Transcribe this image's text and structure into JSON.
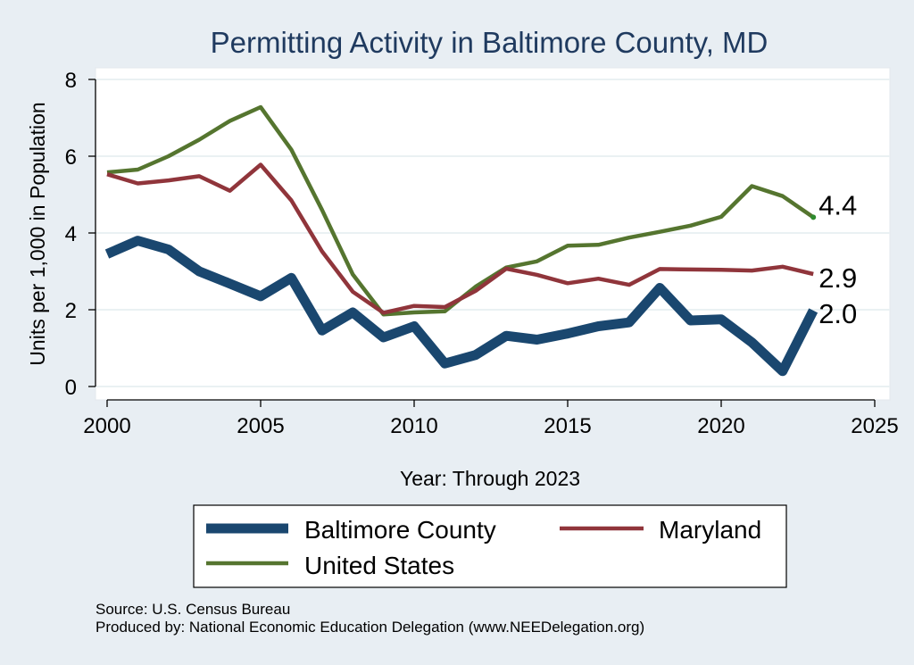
{
  "colors": {
    "baltimore": "#1a476f",
    "maryland": "#90353b",
    "united_states": "#55752f",
    "title": "#1f3a5f",
    "plot_bg": "#ffffff",
    "outer_bg": "#e8eef3",
    "grid": "#eaf1f3"
  },
  "chart_data": {
    "type": "line",
    "title": "Permitting Activity in Baltimore County, MD",
    "xlabel": "Year: Through 2023",
    "ylabel": "Units per 1,000 in Population",
    "xlim": [
      2000,
      2025
    ],
    "ylim": [
      0,
      8
    ],
    "x_ticks": [
      2000,
      2005,
      2010,
      2015,
      2020,
      2025
    ],
    "y_ticks": [
      0,
      2,
      4,
      6,
      8
    ],
    "grid": true,
    "legend_position": "bottom",
    "x": [
      2000,
      2001,
      2002,
      2003,
      2004,
      2005,
      2006,
      2007,
      2008,
      2009,
      2010,
      2011,
      2012,
      2013,
      2014,
      2015,
      2016,
      2017,
      2018,
      2019,
      2020,
      2021,
      2022,
      2023
    ],
    "series": [
      {
        "name": "Baltimore County",
        "color_key": "baltimore",
        "values": [
          3.45,
          3.8,
          3.57,
          3.0,
          2.68,
          2.35,
          2.83,
          1.46,
          1.93,
          1.28,
          1.57,
          0.6,
          0.82,
          1.32,
          1.22,
          1.38,
          1.57,
          1.67,
          2.57,
          1.72,
          1.75,
          1.15,
          0.4,
          1.98
        ],
        "end_label": "2.0"
      },
      {
        "name": "Maryland",
        "color_key": "maryland",
        "values": [
          5.53,
          5.29,
          5.37,
          5.48,
          5.1,
          5.78,
          4.85,
          3.52,
          2.47,
          1.92,
          2.1,
          2.07,
          2.49,
          3.07,
          2.91,
          2.69,
          2.81,
          2.65,
          3.06,
          3.05,
          3.04,
          3.02,
          3.12,
          2.93
        ],
        "end_label": "2.9"
      },
      {
        "name": "United States",
        "color_key": "united_states",
        "values": [
          5.58,
          5.65,
          6.0,
          6.43,
          6.92,
          7.28,
          6.17,
          4.6,
          2.92,
          1.88,
          1.93,
          1.96,
          2.6,
          3.1,
          3.26,
          3.67,
          3.69,
          3.88,
          4.03,
          4.19,
          4.42,
          5.22,
          4.96,
          4.41
        ],
        "end_label": "4.4"
      }
    ],
    "legend": [
      "Baltimore County",
      "Maryland",
      "United States"
    ],
    "notes": [
      "Source: U.S. Census Bureau",
      "Produced by: National Economic Education Delegation (www.NEEDelegation.org)"
    ]
  }
}
